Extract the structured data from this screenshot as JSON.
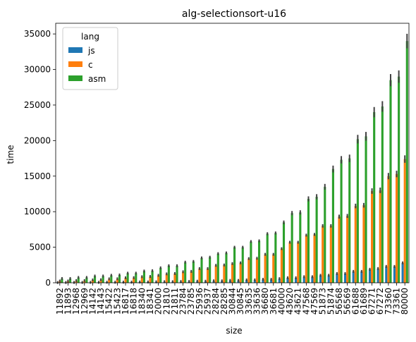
{
  "chart_data": {
    "type": "bar",
    "title": "alg-selectionsort-u16",
    "xlabel": "size",
    "ylabel": "time",
    "ylim": [
      0,
      36500
    ],
    "yticks": [
      0,
      5000,
      10000,
      15000,
      20000,
      25000,
      30000,
      35000
    ],
    "categories": [
      "11892",
      "11893",
      "12968",
      "12969",
      "14142",
      "14143",
      "15422",
      "15423",
      "16817",
      "16818",
      "18340",
      "18341",
      "20000",
      "21810",
      "21811",
      "23784",
      "23785",
      "25936",
      "25937",
      "28284",
      "28285",
      "30844",
      "30845",
      "33635",
      "33636",
      "36680",
      "36681",
      "40000",
      "43620",
      "43621",
      "47568",
      "47569",
      "51873",
      "51874",
      "56568",
      "56569",
      "61688",
      "61689",
      "67271",
      "67272",
      "73360",
      "73361",
      "80000"
    ],
    "legend": {
      "title": "lang",
      "position": "top-left"
    },
    "grid": false,
    "series": [
      {
        "name": "js",
        "color": "#1f77b4",
        "values": [
          40,
          40,
          50,
          50,
          60,
          60,
          80,
          80,
          90,
          90,
          110,
          110,
          130,
          150,
          150,
          180,
          180,
          220,
          220,
          270,
          270,
          330,
          330,
          400,
          400,
          480,
          480,
          580,
          700,
          700,
          850,
          850,
          1050,
          1050,
          1300,
          1300,
          1600,
          1600,
          1900,
          2000,
          2300,
          2300,
          2800
        ]
      },
      {
        "name": "c",
        "color": "#ff7f0e",
        "values": [
          250,
          250,
          300,
          310,
          400,
          420,
          550,
          560,
          700,
          720,
          850,
          880,
          1050,
          1250,
          1300,
          1550,
          1600,
          2000,
          2000,
          2450,
          2500,
          2700,
          2800,
          3400,
          3450,
          4000,
          4000,
          4800,
          5700,
          5700,
          6700,
          6800,
          8000,
          8000,
          9300,
          9400,
          10800,
          10900,
          12900,
          13000,
          15000,
          15300,
          17400
        ]
      },
      {
        "name": "asm",
        "color": "#2ca02c",
        "values": [
          600,
          600,
          750,
          750,
          950,
          950,
          1050,
          1100,
          1350,
          1350,
          1650,
          1700,
          2100,
          2400,
          2400,
          2900,
          3000,
          3500,
          3600,
          4100,
          4200,
          5000,
          5000,
          5800,
          5900,
          6900,
          7000,
          8500,
          9800,
          9900,
          11800,
          12100,
          13500,
          16000,
          17300,
          17500,
          20200,
          20600,
          24000,
          24800,
          28500,
          29000,
          34000
        ]
      }
    ]
  }
}
